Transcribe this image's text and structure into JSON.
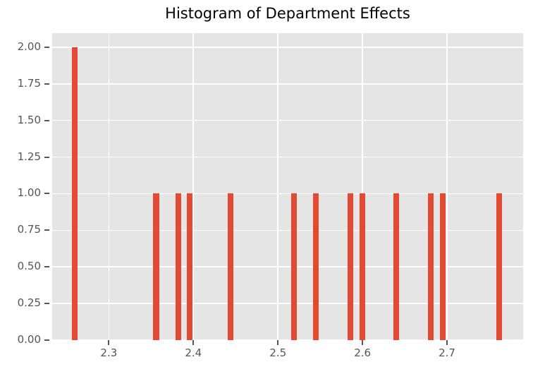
{
  "chart_data": {
    "type": "bar",
    "title": "Histogram of Department Effects",
    "xlabel": "",
    "ylabel": "",
    "xlim": [
      2.233,
      2.79
    ],
    "ylim": [
      0,
      2.096
    ],
    "grid": true,
    "legend": false,
    "bar_width": 0.0067,
    "bars": [
      {
        "x": 2.26,
        "count": 2
      },
      {
        "x": 2.356,
        "count": 1
      },
      {
        "x": 2.382,
        "count": 1
      },
      {
        "x": 2.396,
        "count": 1
      },
      {
        "x": 2.444,
        "count": 1
      },
      {
        "x": 2.519,
        "count": 1
      },
      {
        "x": 2.545,
        "count": 1
      },
      {
        "x": 2.586,
        "count": 1
      },
      {
        "x": 2.6,
        "count": 1
      },
      {
        "x": 2.64,
        "count": 1
      },
      {
        "x": 2.681,
        "count": 1
      },
      {
        "x": 2.695,
        "count": 1
      },
      {
        "x": 2.762,
        "count": 1
      }
    ],
    "xticks": [
      {
        "value": 2.3,
        "label": "2.3"
      },
      {
        "value": 2.4,
        "label": "2.4"
      },
      {
        "value": 2.5,
        "label": "2.5"
      },
      {
        "value": 2.6,
        "label": "2.6"
      },
      {
        "value": 2.7,
        "label": "2.7"
      }
    ],
    "yticks": [
      {
        "value": 0.0,
        "label": "0.00"
      },
      {
        "value": 0.25,
        "label": "0.25"
      },
      {
        "value": 0.5,
        "label": "0.50"
      },
      {
        "value": 0.75,
        "label": "0.75"
      },
      {
        "value": 1.0,
        "label": "1.00"
      },
      {
        "value": 1.25,
        "label": "1.25"
      },
      {
        "value": 1.5,
        "label": "1.50"
      },
      {
        "value": 1.75,
        "label": "1.75"
      },
      {
        "value": 2.0,
        "label": "2.00"
      }
    ],
    "colors": {
      "bar": "#E24A33",
      "plot_background": "#E5E5E5",
      "gridline": "#FFFFFF",
      "tick": "#555555",
      "title": "#000000"
    }
  }
}
